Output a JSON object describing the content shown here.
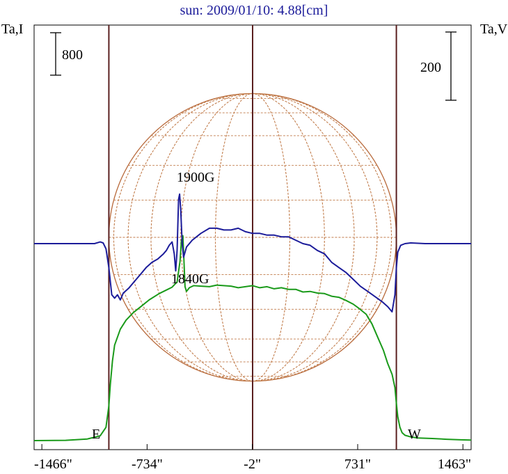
{
  "chart_data": {
    "type": "line",
    "title": "sun: 2009/01/10: 4.88[cm]",
    "y_left_label": "Ta,I",
    "y_right_label": "Ta,V",
    "scale_bar_left": "800",
    "scale_bar_right": "200",
    "x_ticks": [
      "-1466\"",
      "-734\"",
      "-2\"",
      "731\"",
      "1463\""
    ],
    "x_tick_values": [
      -1466,
      -734,
      -2,
      731,
      1463
    ],
    "xlim": [
      -1520,
      1520
    ],
    "limb_labels": {
      "east": "E",
      "west": "W"
    },
    "limb_positions": [
      -1000,
      0,
      1000
    ],
    "annotations": [
      "1900G",
      "1840G"
    ],
    "series": [
      {
        "name": "I",
        "color": "#1a9a1a",
        "x": [
          -1520,
          -1300,
          -1150,
          -1060,
          -1020,
          -1000,
          -990,
          -975,
          -960,
          -920,
          -880,
          -830,
          -770,
          -720,
          -650,
          -590,
          -560,
          -525,
          -505,
          -495,
          -485,
          -478,
          -470,
          -460,
          -440,
          -410,
          -360,
          -300,
          -250,
          -200,
          -150,
          -100,
          -50,
          0,
          50,
          100,
          150,
          200,
          250,
          300,
          350,
          400,
          450,
          500,
          550,
          600,
          650,
          700,
          740,
          790,
          830,
          870,
          910,
          940,
          970,
          990,
          1000,
          1010,
          1025,
          1040,
          1060,
          1100,
          1150,
          1250,
          1350,
          1450,
          1520
        ],
        "y": [
          0,
          5,
          30,
          90,
          250,
          650,
          1050,
          1500,
          1800,
          2100,
          2270,
          2410,
          2540,
          2650,
          2770,
          2850,
          2890,
          2990,
          3380,
          3770,
          3860,
          3400,
          2900,
          2810,
          2880,
          2920,
          2910,
          2900,
          2930,
          2920,
          2910,
          2880,
          2900,
          2920,
          2880,
          2900,
          2860,
          2880,
          2850,
          2850,
          2800,
          2810,
          2780,
          2770,
          2720,
          2700,
          2640,
          2570,
          2490,
          2380,
          2200,
          1950,
          1700,
          1450,
          1250,
          1000,
          700,
          450,
          250,
          150,
          100,
          70,
          50,
          40,
          25,
          15,
          10
        ]
      },
      {
        "name": "V",
        "color": "#1c1c9a",
        "x": [
          -1520,
          -1100,
          -1060,
          -1040,
          -1020,
          -1000,
          -980,
          -960,
          -940,
          -920,
          -900,
          -860,
          -820,
          -780,
          -740,
          -700,
          -660,
          -620,
          -600,
          -580,
          -560,
          -545,
          -535,
          -525,
          -515,
          -508,
          -500,
          -490,
          -480,
          -460,
          -420,
          -360,
          -300,
          -250,
          -200,
          -150,
          -100,
          -50,
          0,
          50,
          100,
          150,
          200,
          250,
          300,
          350,
          400,
          450,
          500,
          550,
          600,
          650,
          700,
          750,
          800,
          850,
          900,
          940,
          970,
          990,
          1000,
          1010,
          1030,
          1060,
          1100,
          1200,
          1520
        ],
        "y": [
          0,
          0,
          5,
          2,
          -15,
          -70,
          -150,
          -160,
          -150,
          -165,
          -145,
          -130,
          -110,
          -90,
          -70,
          -55,
          -45,
          -30,
          -20,
          -5,
          5,
          -30,
          -80,
          -20,
          130,
          145,
          100,
          0,
          -40,
          -10,
          10,
          30,
          45,
          45,
          40,
          40,
          45,
          35,
          30,
          30,
          25,
          25,
          20,
          20,
          10,
          0,
          -5,
          -20,
          -30,
          -55,
          -70,
          -85,
          -105,
          -125,
          -140,
          -155,
          -170,
          -185,
          -200,
          -150,
          -70,
          -25,
          -5,
          0,
          2,
          0,
          0
        ]
      }
    ]
  }
}
